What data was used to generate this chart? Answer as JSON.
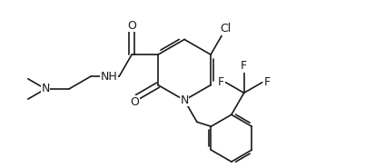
{
  "background_color": "#ffffff",
  "line_color": "#1a1a1a",
  "text_color": "#1a1a1a",
  "figsize": [
    4.24,
    1.85
  ],
  "dpi": 100,
  "xlim": [
    0,
    9.5
  ],
  "ylim": [
    0,
    4.0
  ]
}
